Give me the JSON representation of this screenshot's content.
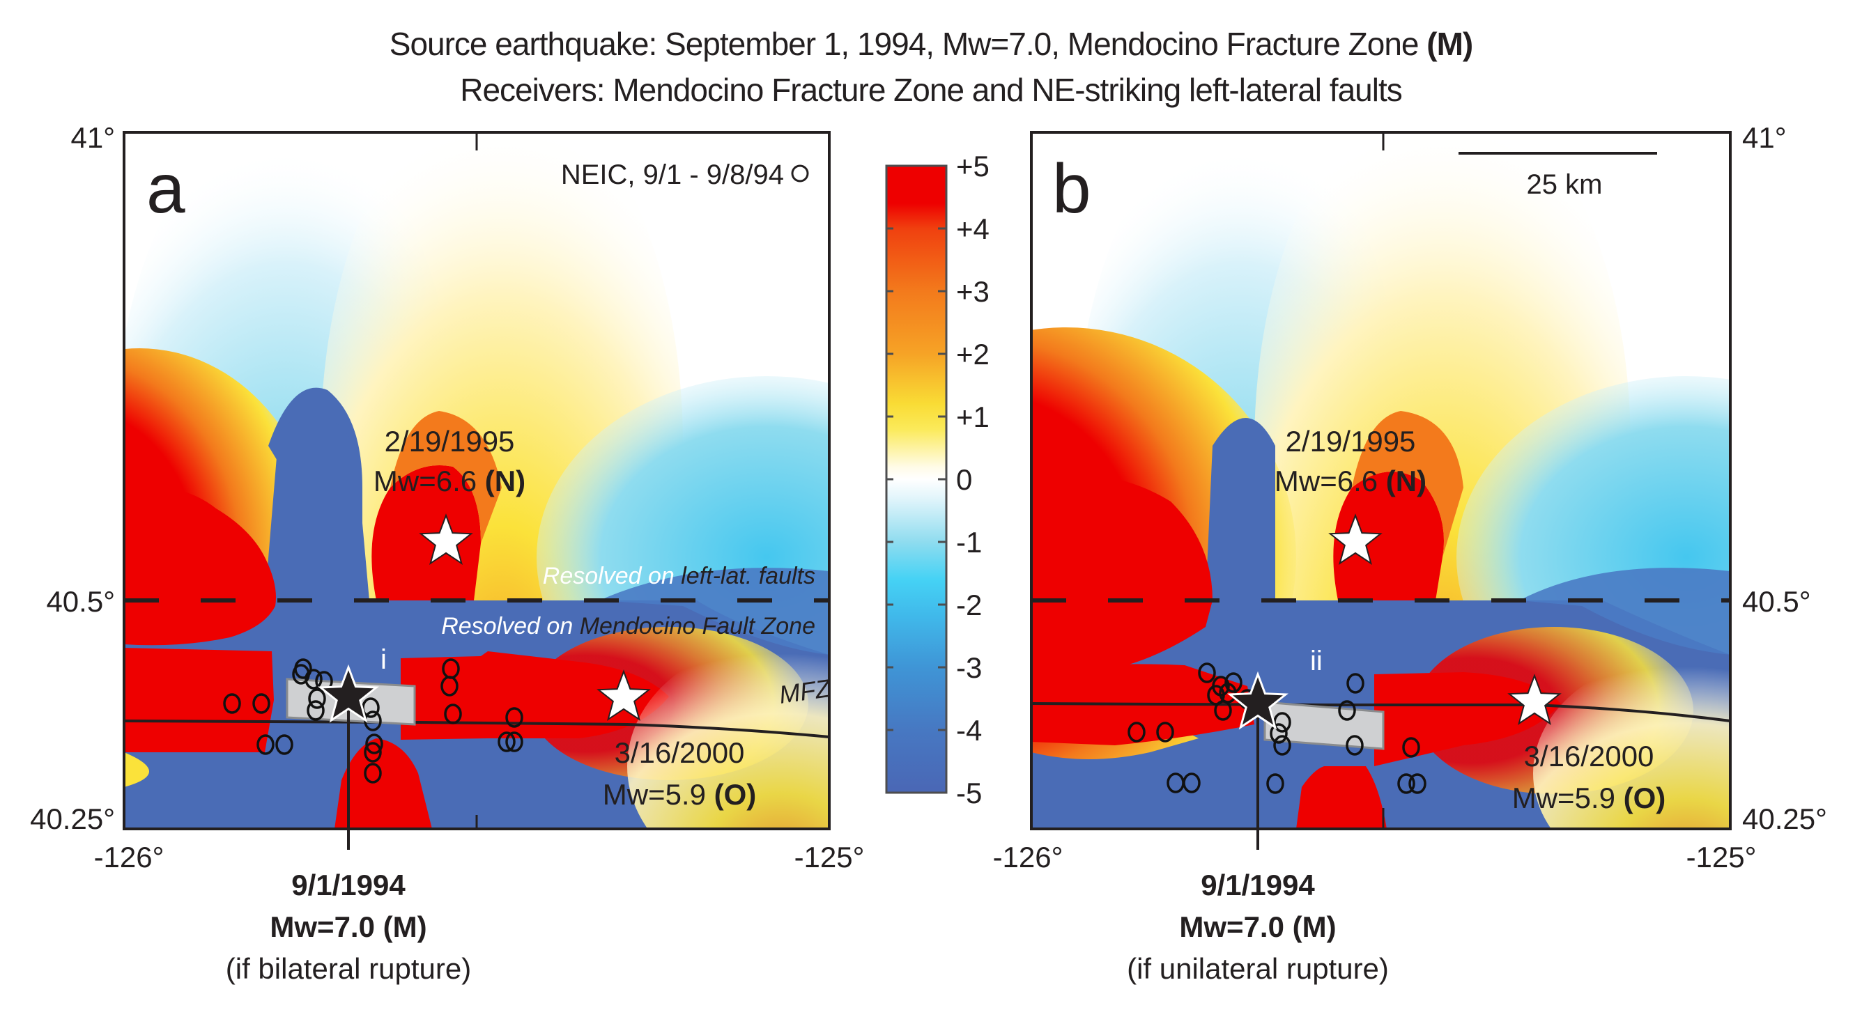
{
  "title_lines": [
    {
      "text": "Source earthquake: September 1, 1994, Mw=7.0, Mendocino Fracture Zone ",
      "bold": "(M)"
    },
    {
      "text": "Receivers: Mendocino Fracture Zone and NE-striking left-lateral faults",
      "bold": ""
    }
  ],
  "chart_data": {
    "type": "heatmap",
    "title": "Source earthquake: September 1, 1994, Mw=7.0, Mendocino Fracture Zone (M) / Receivers: Mendocino Fracture Zone and NE-striking left-lateral faults",
    "colorbar": {
      "ticks": [
        "+5",
        "+4",
        "+3",
        "+2",
        "+1",
        "0",
        "-1",
        "-2",
        "-3",
        "-4",
        "-5"
      ],
      "range": [
        -5,
        5
      ],
      "colors": {
        "pos_max": "#ee0000",
        "pos_4": "#f04a12",
        "pos_3": "#f5891f",
        "pos_2": "#f7b52a",
        "pos_1": "#fbe93a",
        "zero": "#ffffff",
        "neg_1": "#9fdff0",
        "neg_2": "#45d2f5",
        "neg_3": "#3ea3dc",
        "neg_4": "#4a7bc4",
        "neg_max": "#4a6cb6"
      }
    },
    "panels": [
      {
        "id": "a",
        "letter": "a",
        "xlim": [
          -126,
          -125
        ],
        "ylim": [
          40.25,
          41
        ],
        "x_ticks": [
          "-126°",
          "-125°"
        ],
        "y_ticks_left": [
          "41°",
          "40.5°",
          "40.25°"
        ],
        "legend": "NEIC, 9/1 - 9/8/94",
        "divider_lat": 40.5,
        "upper_label": {
          "prefix": "Resolved on ",
          "emph": "left-lat. faults"
        },
        "lower_label": {
          "prefix": "Resolved on ",
          "emph": "Mendocino Fault Zone"
        },
        "fault_label": "MFZ",
        "patch_label": "i",
        "source": {
          "date": "9/1/1994",
          "mag": "Mw=7.0 (M)",
          "note": "(if bilateral rupture)",
          "lon": -125.69,
          "lat": 40.4
        },
        "events": [
          {
            "id": "N",
            "date": "2/19/1995",
            "mag": "Mw=6.6 ",
            "code": "(N)",
            "lon": -125.54,
            "lat": 40.54
          },
          {
            "id": "O",
            "date": "3/16/2000",
            "mag": "Mw=5.9 ",
            "code": "(O)",
            "lon": -125.29,
            "lat": 40.4
          }
        ],
        "aftershocks_count": 21
      },
      {
        "id": "b",
        "letter": "b",
        "xlim": [
          -126,
          -125
        ],
        "ylim": [
          40.25,
          41
        ],
        "x_ticks": [
          "-126°",
          "-125°"
        ],
        "y_ticks_right": [
          "41°",
          "40.5°",
          "40.25°"
        ],
        "scale_bar": "25 km",
        "divider_lat": 40.5,
        "patch_label": "ii",
        "source": {
          "date": "9/1/1994",
          "mag": "Mw=7.0 (M)",
          "note": "(if unilateral rupture)",
          "lon": -125.68,
          "lat": 40.39
        },
        "events": [
          {
            "id": "N",
            "date": "2/19/1995",
            "mag": "Mw=6.6 ",
            "code": "(N)",
            "lon": -125.54,
            "lat": 40.54
          },
          {
            "id": "O",
            "date": "3/16/2000",
            "mag": "Mw=5.9 ",
            "code": "(O)",
            "lon": -125.28,
            "lat": 40.39
          }
        ],
        "aftershocks_count": 21
      }
    ]
  }
}
